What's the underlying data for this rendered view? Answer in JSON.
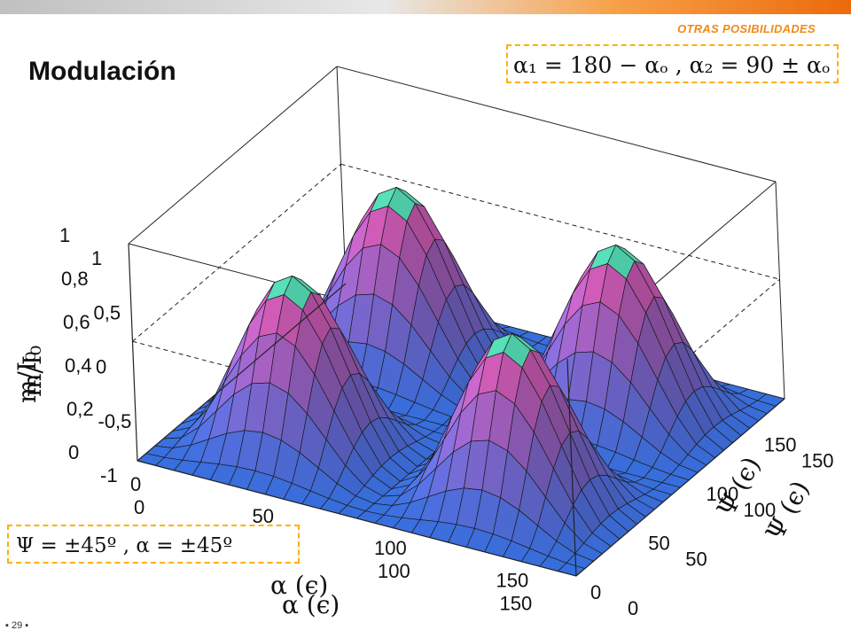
{
  "header": {
    "section_label": "OTRAS POSIBILIDADES",
    "title": "Modulación"
  },
  "formulas": {
    "top": "α₁ = 180 − αₒ ,  α₂ = 90 ± αₒ",
    "bottom": "Ψ = ±45º    ,    α = ±45º"
  },
  "footer": {
    "page": "▪ 29 ▪"
  },
  "colors": {
    "bar_grey": "#c8c8c8",
    "bar_orange": "#ec6a0b",
    "accent_orange": "#f08a17",
    "formula_border": "#ffb000",
    "surface_low": "#3a7cf0",
    "surface_high": "#f26a8a",
    "surface_peak": "#35d8b0"
  },
  "chart_data": {
    "type": "surface",
    "title": "",
    "xlabel": "α (є)",
    "ylabel": "Ψ (є)",
    "zlabel": "m/I₀",
    "x_ticks": [
      "0",
      "50",
      "100",
      "150"
    ],
    "y_ticks": [
      "0",
      "50",
      "100",
      "150"
    ],
    "z_ticks": [
      "-1",
      "-0,5",
      "0",
      "0,5",
      "1"
    ],
    "z_ticks_overlay": [
      "0",
      "0,2",
      "0,4",
      "0,6",
      "0,8",
      "1"
    ],
    "zlabel_overlay": "m/I₀",
    "xlabel_overlay": "α (є)",
    "ylabel_overlay": "Ψ (є)",
    "x_range": [
      0,
      180
    ],
    "y_range": [
      0,
      180
    ],
    "z_range": [
      0,
      1
    ],
    "function": "z = sin²(2α)·sin²(2Ψ)",
    "peaks": [
      {
        "x": 45,
        "y": 45,
        "z": 1
      },
      {
        "x": 135,
        "y": 45,
        "z": 1
      },
      {
        "x": 45,
        "y": 135,
        "z": 1
      },
      {
        "x": 135,
        "y": 135,
        "z": 1
      }
    ],
    "grid": true
  }
}
